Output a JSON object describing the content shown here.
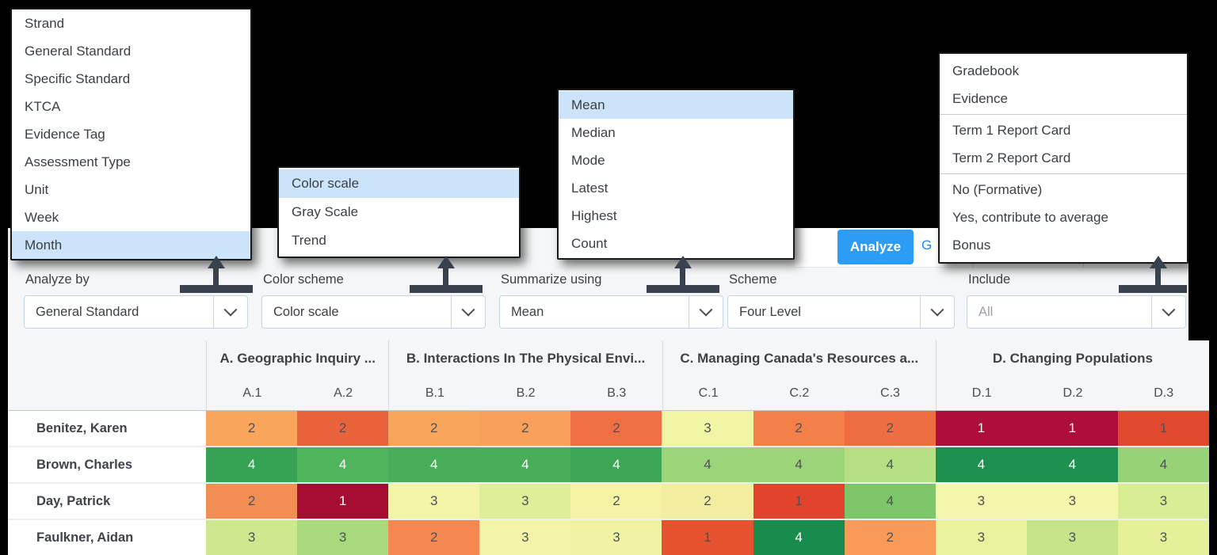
{
  "colors": {
    "accent_blue": "#2D9CF4",
    "menu_highlight": "#CBE4FA",
    "annotation_arrow": "#39424C"
  },
  "toolbar": {
    "analyze_button": "Analyze",
    "partial_tab_text": "G"
  },
  "controls": [
    {
      "label": "Analyze by",
      "value": "General Standard",
      "muted": false
    },
    {
      "label": "Color scheme",
      "value": "Color scale",
      "muted": false
    },
    {
      "label": "Summarize using",
      "value": "Mean",
      "muted": false
    },
    {
      "label": "Scheme",
      "value": "Four Level",
      "muted": false
    },
    {
      "label": "Include",
      "value": "All",
      "muted": true
    }
  ],
  "menus": [
    {
      "id": "analyze-by-menu",
      "items": [
        {
          "label": "Strand"
        },
        {
          "label": "General Standard"
        },
        {
          "label": "Specific Standard"
        },
        {
          "label": "KTCA"
        },
        {
          "label": "Evidence Tag"
        },
        {
          "label": "Assessment Type"
        },
        {
          "label": "Unit"
        },
        {
          "label": "Week"
        },
        {
          "label": "Month",
          "highlighted": true
        }
      ]
    },
    {
      "id": "color-scheme-menu",
      "items": [
        {
          "label": "Color scale",
          "highlighted": true
        },
        {
          "label": "Gray Scale"
        },
        {
          "label": "Trend"
        }
      ]
    },
    {
      "id": "summarize-menu",
      "items": [
        {
          "label": "Mean",
          "highlighted": true
        },
        {
          "label": "Median"
        },
        {
          "label": "Mode"
        },
        {
          "label": "Latest"
        },
        {
          "label": "Highest"
        },
        {
          "label": "Count"
        }
      ]
    },
    {
      "id": "include-menu",
      "items": [
        {
          "label": "Gradebook"
        },
        {
          "label": "Evidence",
          "divider_after": true
        },
        {
          "label": "Term 1 Report Card"
        },
        {
          "label": "Term 2 Report Card",
          "divider_after": true
        },
        {
          "label": "No (Formative)"
        },
        {
          "label": "Yes, contribute to average"
        },
        {
          "label": "Bonus"
        }
      ]
    }
  ],
  "table": {
    "groups": [
      {
        "label": "A. Geographic Inquiry ...",
        "span": 2
      },
      {
        "label": "B. Interactions In The Physical Envi...",
        "span": 3
      },
      {
        "label": "C. Managing Canada's Resources a...",
        "span": 3
      },
      {
        "label": "D. Changing Populations",
        "span": 3
      }
    ],
    "columns": [
      "A.1",
      "A.2",
      "B.1",
      "B.2",
      "B.3",
      "C.1",
      "C.2",
      "C.3",
      "D.1",
      "D.2",
      "D.3"
    ],
    "rows": [
      {
        "name": "Benitez, Karen",
        "cells": [
          {
            "v": "2",
            "bg": "#F9A55C"
          },
          {
            "v": "2",
            "bg": "#E8633B"
          },
          {
            "v": "2",
            "bg": "#F9A55C"
          },
          {
            "v": "2",
            "bg": "#F9A05B"
          },
          {
            "v": "2",
            "bg": "#F07043"
          },
          {
            "v": "3",
            "bg": "#EFF5A3"
          },
          {
            "v": "2",
            "bg": "#F38049"
          },
          {
            "v": "2",
            "bg": "#EF6E41"
          },
          {
            "v": "1",
            "bg": "#AE0E3A",
            "light": true
          },
          {
            "v": "1",
            "bg": "#AE0E3A",
            "light": true
          },
          {
            "v": "1",
            "bg": "#E1492F"
          }
        ]
      },
      {
        "name": "Brown, Charles",
        "cells": [
          {
            "v": "4",
            "bg": "#35A254",
            "light": true
          },
          {
            "v": "4",
            "bg": "#4FB45C",
            "light": true
          },
          {
            "v": "4",
            "bg": "#48AE59",
            "light": true
          },
          {
            "v": "4",
            "bg": "#48AE59",
            "light": true
          },
          {
            "v": "4",
            "bg": "#3AA656",
            "light": true
          },
          {
            "v": "4",
            "bg": "#9CD47A"
          },
          {
            "v": "4",
            "bg": "#9CD47A"
          },
          {
            "v": "4",
            "bg": "#B5DF83"
          },
          {
            "v": "4",
            "bg": "#1E9150",
            "light": true
          },
          {
            "v": "4",
            "bg": "#1E9150",
            "light": true
          },
          {
            "v": "4",
            "bg": "#98D276"
          }
        ]
      },
      {
        "name": "Day, Patrick",
        "cells": [
          {
            "v": "2",
            "bg": "#F28E52"
          },
          {
            "v": "1",
            "bg": "#A50D33",
            "light": true
          },
          {
            "v": "3",
            "bg": "#F3F4A6"
          },
          {
            "v": "3",
            "bg": "#DFEF98"
          },
          {
            "v": "2",
            "bg": "#F5F2A4"
          },
          {
            "v": "2",
            "bg": "#F3EDA0"
          },
          {
            "v": "1",
            "bg": "#E2432C"
          },
          {
            "v": "4",
            "bg": "#7CC568"
          },
          {
            "v": "3",
            "bg": "#F4F6AB"
          },
          {
            "v": "3",
            "bg": "#F4F6AB"
          },
          {
            "v": "3",
            "bg": "#D9ED94"
          }
        ]
      },
      {
        "name": "Faulkner, Aidan",
        "cells": [
          {
            "v": "3",
            "bg": "#CEE88E"
          },
          {
            "v": "3",
            "bg": "#A8D97C"
          },
          {
            "v": "2",
            "bg": "#F58850"
          },
          {
            "v": "3",
            "bg": "#F2F5A8"
          },
          {
            "v": "3",
            "bg": "#F0F3A3"
          },
          {
            "v": "1",
            "bg": "#E4522F"
          },
          {
            "v": "4",
            "bg": "#188C4C",
            "light": true
          },
          {
            "v": "2",
            "bg": "#F89B59"
          },
          {
            "v": "3",
            "bg": "#EAF29D"
          },
          {
            "v": "3",
            "bg": "#C6E58A"
          },
          {
            "v": "3",
            "bg": "#E6F099"
          }
        ]
      }
    ]
  }
}
